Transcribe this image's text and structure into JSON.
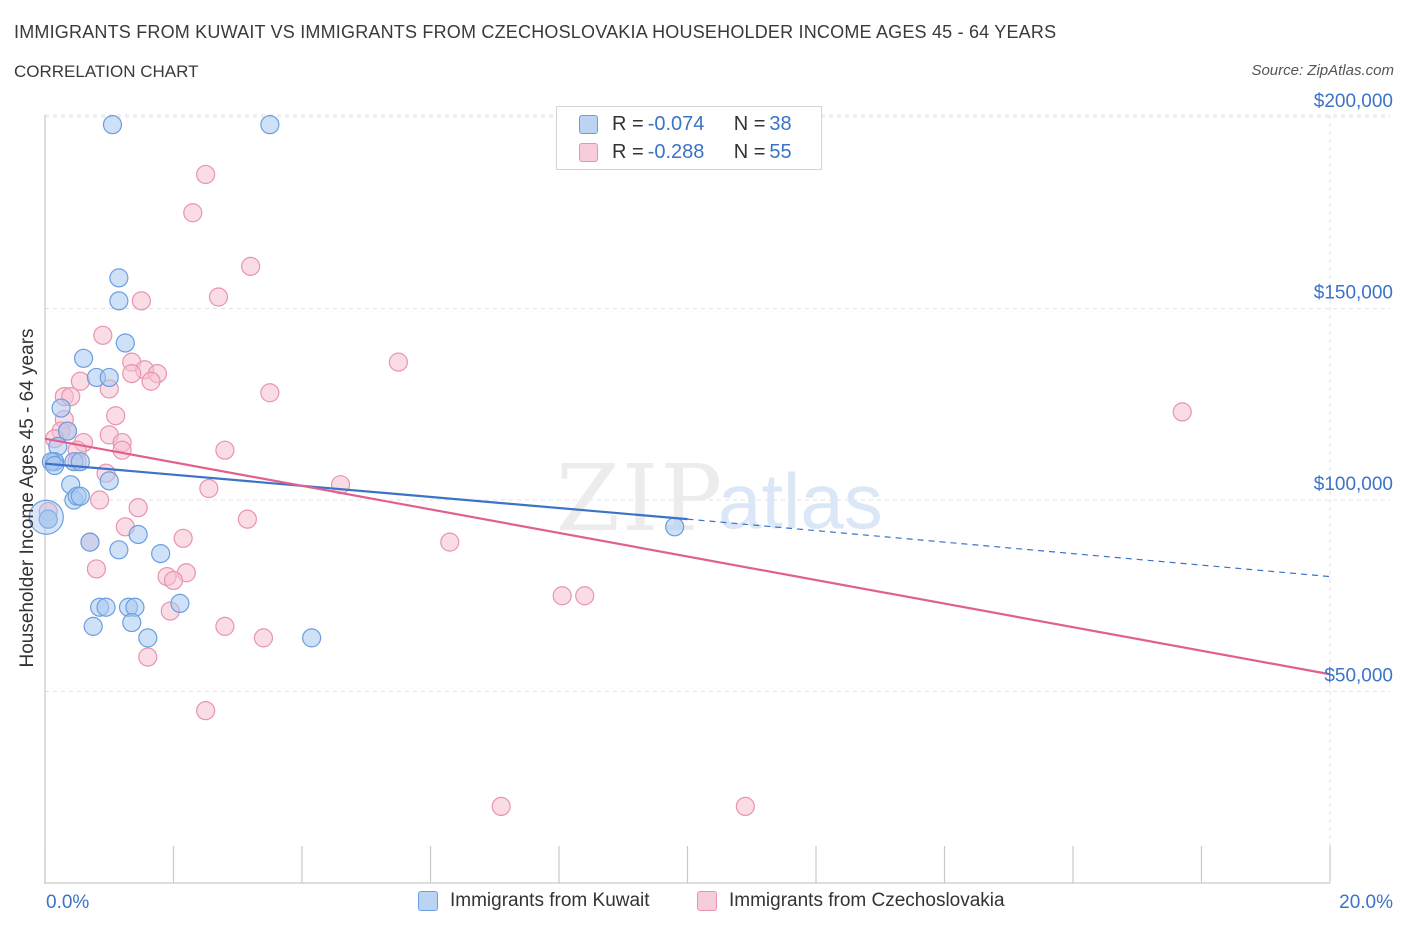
{
  "header": {
    "title": "IMMIGRANTS FROM KUWAIT VS IMMIGRANTS FROM CZECHOSLOVAKIA HOUSEHOLDER INCOME AGES 45 - 64 YEARS",
    "subtitle": "CORRELATION CHART",
    "source": "Source: ZipAtlas.com"
  },
  "legend_top": [
    {
      "r_label": "R = ",
      "r_value": "-0.074",
      "n_label": "N = ",
      "n_value": "38"
    },
    {
      "r_label": "R = ",
      "r_value": "-0.288",
      "n_label": "N = ",
      "n_value": "55"
    }
  ],
  "legend_bottom": [
    "Immigrants from Kuwait",
    "Immigrants from Czechoslovakia"
  ],
  "watermark": {
    "zip": "ZIP",
    "atlas": "atlas"
  },
  "colors": {
    "kuwait_fill": "#a8c8f0",
    "kuwait_stroke": "#6b9ee0",
    "kuwait_line": "#3b73c9",
    "czech_fill": "#f6bfd0",
    "czech_stroke": "#e993b0",
    "czech_line": "#e0608f",
    "tick_label": "#3b73c9",
    "grid": "#e2e2e2"
  },
  "chart_data": {
    "type": "scatter",
    "title": "IMMIGRANTS FROM KUWAIT VS IMMIGRANTS FROM CZECHOSLOVAKIA HOUSEHOLDER INCOME AGES 45 - 64 YEARS",
    "xlabel": "",
    "ylabel": "Householder Income Ages 45 - 64 years",
    "xlim": [
      0,
      20
    ],
    "ylim": [
      0,
      200000
    ],
    "x_tick_labels": [
      "0.0%",
      "20.0%"
    ],
    "y_ticks": [
      50000,
      100000,
      150000,
      200000
    ],
    "y_tick_labels": [
      "$50,000",
      "$100,000",
      "$150,000",
      "$200,000"
    ],
    "grid": true,
    "legend_position": "bottom",
    "series": [
      {
        "name": "Immigrants from Kuwait",
        "points": [
          [
            1.05,
            198000
          ],
          [
            3.5,
            198000
          ],
          [
            1.15,
            158000
          ],
          [
            1.15,
            152000
          ],
          [
            1.25,
            141000
          ],
          [
            0.6,
            137000
          ],
          [
            0.8,
            132000
          ],
          [
            1.0,
            132000
          ],
          [
            0.25,
            124000
          ],
          [
            0.35,
            118000
          ],
          [
            0.2,
            114000
          ],
          [
            0.15,
            110000
          ],
          [
            0.15,
            110000
          ],
          [
            0.45,
            110000
          ],
          [
            0.55,
            110000
          ],
          [
            1.0,
            105000
          ],
          [
            0.4,
            104000
          ],
          [
            0.45,
            100000
          ],
          [
            0.5,
            101000
          ],
          [
            0.55,
            101000
          ],
          [
            0.05,
            95000
          ],
          [
            0.05,
            95000
          ],
          [
            1.45,
            91000
          ],
          [
            0.7,
            89000
          ],
          [
            1.15,
            87000
          ],
          [
            1.8,
            86000
          ],
          [
            2.1,
            73000
          ],
          [
            0.85,
            72000
          ],
          [
            0.95,
            72000
          ],
          [
            1.3,
            72000
          ],
          [
            1.4,
            72000
          ],
          [
            0.75,
            67000
          ],
          [
            1.35,
            68000
          ],
          [
            1.6,
            64000
          ],
          [
            4.15,
            64000
          ],
          [
            9.8,
            93000
          ],
          [
            0.1,
            110000
          ],
          [
            0.15,
            109000
          ]
        ]
      },
      {
        "name": "Immigrants from Czechoslovakia",
        "points": [
          [
            2.5,
            185000
          ],
          [
            2.3,
            175000
          ],
          [
            3.2,
            161000
          ],
          [
            1.5,
            152000
          ],
          [
            2.7,
            153000
          ],
          [
            0.9,
            143000
          ],
          [
            1.35,
            136000
          ],
          [
            1.55,
            134000
          ],
          [
            1.75,
            133000
          ],
          [
            5.5,
            136000
          ],
          [
            1.35,
            133000
          ],
          [
            1.65,
            131000
          ],
          [
            0.55,
            131000
          ],
          [
            1.0,
            129000
          ],
          [
            3.5,
            128000
          ],
          [
            0.3,
            127000
          ],
          [
            0.4,
            127000
          ],
          [
            1.1,
            122000
          ],
          [
            0.3,
            121000
          ],
          [
            0.25,
            118000
          ],
          [
            0.35,
            118000
          ],
          [
            0.15,
            116000
          ],
          [
            1.0,
            117000
          ],
          [
            0.6,
            115000
          ],
          [
            1.2,
            115000
          ],
          [
            0.5,
            113000
          ],
          [
            1.2,
            113000
          ],
          [
            2.8,
            113000
          ],
          [
            0.5,
            110000
          ],
          [
            0.1,
            110000
          ],
          [
            0.95,
            107000
          ],
          [
            0.85,
            100000
          ],
          [
            4.6,
            104000
          ],
          [
            2.55,
            103000
          ],
          [
            0.05,
            97000
          ],
          [
            1.45,
            98000
          ],
          [
            3.15,
            95000
          ],
          [
            1.25,
            93000
          ],
          [
            0.7,
            89000
          ],
          [
            2.15,
            90000
          ],
          [
            6.3,
            89000
          ],
          [
            0.8,
            82000
          ],
          [
            1.9,
            80000
          ],
          [
            2.2,
            81000
          ],
          [
            2.0,
            79000
          ],
          [
            1.95,
            71000
          ],
          [
            8.05,
            75000
          ],
          [
            8.4,
            75000
          ],
          [
            2.8,
            67000
          ],
          [
            3.4,
            64000
          ],
          [
            1.6,
            59000
          ],
          [
            2.5,
            45000
          ],
          [
            17.7,
            123000
          ],
          [
            7.1,
            20000
          ],
          [
            10.9,
            20000
          ]
        ]
      }
    ],
    "trend_lines": [
      {
        "series": "Immigrants from Kuwait",
        "x_start": 0,
        "y_start": 109500,
        "x_solid_end": 10,
        "y_solid_end": 95000,
        "x_end": 20,
        "y_end": 80000
      },
      {
        "series": "Immigrants from Czechoslovakia",
        "x_start": 0,
        "y_start": 116000,
        "x_end": 20,
        "y_end": 54500
      }
    ]
  }
}
